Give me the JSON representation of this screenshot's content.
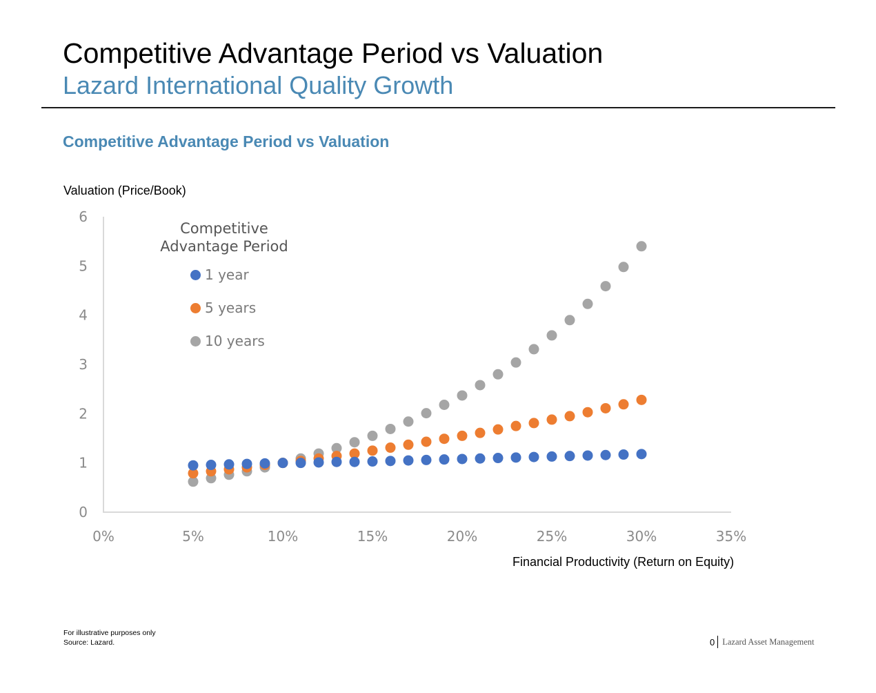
{
  "header": {
    "title": "Competitive Advantage Period vs Valuation",
    "subtitle": "Lazard International Quality Growth"
  },
  "section": {
    "title": "Competitive Advantage Period vs Valuation"
  },
  "footer": {
    "note_line1": "For illustrative purposes only",
    "note_line2": "Source: Lazard.",
    "page_number": "0",
    "brand": "Lazard Asset Management"
  },
  "chart_data": {
    "type": "scatter",
    "title": "",
    "xlabel": "Financial Productivity (Return on Equity)",
    "ylabel": "Valuation (Price/Book)",
    "xlim": [
      0,
      0.35
    ],
    "ylim": [
      0,
      6
    ],
    "x_ticks": [
      0,
      0.05,
      0.1,
      0.15,
      0.2,
      0.25,
      0.3,
      0.35
    ],
    "x_tick_labels": [
      "0%",
      "5%",
      "10%",
      "15%",
      "20%",
      "25%",
      "30%",
      "35%"
    ],
    "y_ticks": [
      0,
      1,
      2,
      3,
      4,
      5,
      6
    ],
    "y_tick_labels": [
      "0",
      "1",
      "2",
      "3",
      "4",
      "5",
      "6"
    ],
    "grid": false,
    "legend": {
      "title_line1": "Competitive",
      "title_line2": "Advantage Period",
      "placement": "top-left"
    },
    "x": [
      0.05,
      0.06,
      0.07,
      0.08,
      0.09,
      0.1,
      0.11,
      0.12,
      0.13,
      0.14,
      0.15,
      0.16,
      0.17,
      0.18,
      0.19,
      0.2,
      0.21,
      0.22,
      0.23,
      0.24,
      0.25,
      0.26,
      0.27,
      0.28,
      0.29,
      0.3
    ],
    "series": [
      {
        "name": "1 year",
        "color": "#4472c4",
        "values": [
          0.95,
          0.96,
          0.97,
          0.98,
          0.99,
          1.0,
          1.0,
          1.01,
          1.02,
          1.02,
          1.03,
          1.04,
          1.05,
          1.06,
          1.07,
          1.08,
          1.09,
          1.1,
          1.11,
          1.12,
          1.13,
          1.14,
          1.15,
          1.16,
          1.17,
          1.18
        ]
      },
      {
        "name": "5 years",
        "color": "#ed7d31",
        "values": [
          0.79,
          0.83,
          0.87,
          0.91,
          0.96,
          1.0,
          1.04,
          1.09,
          1.14,
          1.19,
          1.25,
          1.31,
          1.37,
          1.43,
          1.49,
          1.55,
          1.61,
          1.68,
          1.75,
          1.81,
          1.88,
          1.95,
          2.03,
          2.11,
          2.19,
          2.28
        ]
      },
      {
        "name": "10 years",
        "color": "#a5a5a5",
        "values": [
          0.62,
          0.69,
          0.76,
          0.83,
          0.91,
          1.0,
          1.09,
          1.19,
          1.3,
          1.42,
          1.55,
          1.69,
          1.84,
          2.01,
          2.18,
          2.37,
          2.58,
          2.8,
          3.04,
          3.31,
          3.59,
          3.9,
          4.23,
          4.59,
          4.98,
          5.4
        ]
      }
    ]
  }
}
